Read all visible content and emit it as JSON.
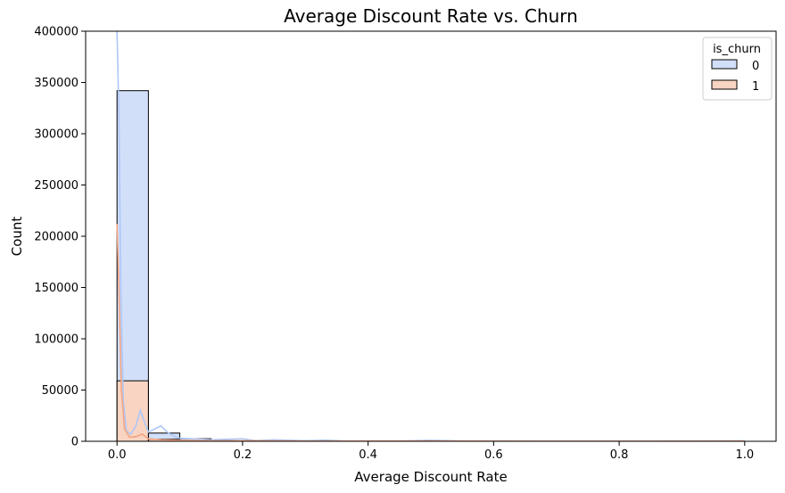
{
  "chart_data": {
    "type": "histogram",
    "title": "Average Discount Rate vs. Churn",
    "xlabel": "Average Discount Rate",
    "ylabel": "Count",
    "xlim": [
      -0.05,
      1.05
    ],
    "ylim": [
      0,
      400000
    ],
    "x_ticks": [
      "0.0",
      "0.2",
      "0.4",
      "0.6",
      "0.8",
      "1.0"
    ],
    "x_tick_values": [
      0.0,
      0.2,
      0.4,
      0.6,
      0.8,
      1.0
    ],
    "y_ticks": [
      "0",
      "50000",
      "100000",
      "150000",
      "200000",
      "250000",
      "300000",
      "350000",
      "400000"
    ],
    "y_tick_values": [
      0,
      50000,
      100000,
      150000,
      200000,
      250000,
      300000,
      350000,
      400000
    ],
    "bin_width": 0.05,
    "bins_start": [
      0.0,
      0.05,
      0.1,
      0.15,
      0.2,
      0.25,
      0.3,
      0.35,
      0.4,
      0.45,
      0.5,
      0.55,
      0.6,
      0.65,
      0.7,
      0.75,
      0.8,
      0.85,
      0.9,
      0.95
    ],
    "legend": {
      "title": "is_churn",
      "placement": "top-right"
    },
    "series": [
      {
        "name": "0",
        "color": "#aec7f8",
        "fill": "#d2dff9",
        "values": [
          342000,
          8000,
          2500,
          700,
          400,
          200,
          100,
          100,
          50,
          50,
          100,
          30,
          20,
          30,
          20,
          10,
          10,
          10,
          10,
          50
        ],
        "kde": [
          [
            0.0,
            400000
          ],
          [
            0.003,
            320000
          ],
          [
            0.006,
            150000
          ],
          [
            0.01,
            40000
          ],
          [
            0.015,
            10000
          ],
          [
            0.022,
            7000
          ],
          [
            0.03,
            15000
          ],
          [
            0.037,
            30000
          ],
          [
            0.043,
            20000
          ],
          [
            0.05,
            9000
          ],
          [
            0.06,
            12000
          ],
          [
            0.07,
            15000
          ],
          [
            0.08,
            9000
          ],
          [
            0.09,
            5000
          ],
          [
            0.1,
            3000
          ],
          [
            0.12,
            2500
          ],
          [
            0.15,
            1500
          ],
          [
            0.2,
            2500
          ],
          [
            0.22,
            700
          ],
          [
            0.25,
            1500
          ],
          [
            0.3,
            600
          ],
          [
            0.33,
            1200
          ],
          [
            0.36,
            400
          ],
          [
            0.45,
            300
          ],
          [
            0.5,
            1000
          ],
          [
            0.55,
            300
          ],
          [
            0.7,
            200
          ],
          [
            0.85,
            150
          ],
          [
            1.0,
            500
          ]
        ]
      },
      {
        "name": "1",
        "color": "#f4a582",
        "fill": "#f9d4c2",
        "values": [
          59000,
          2000,
          700,
          200,
          100,
          50,
          30,
          20,
          10,
          10,
          20,
          5,
          5,
          5,
          5,
          2,
          2,
          2,
          2,
          10
        ],
        "kde": [
          [
            0.0,
            212000
          ],
          [
            0.003,
            150000
          ],
          [
            0.007,
            50000
          ],
          [
            0.012,
            12000
          ],
          [
            0.02,
            4000
          ],
          [
            0.03,
            4500
          ],
          [
            0.04,
            7000
          ],
          [
            0.05,
            2500
          ],
          [
            0.07,
            1500
          ],
          [
            0.1,
            900
          ],
          [
            0.15,
            500
          ],
          [
            0.2,
            600
          ],
          [
            0.3,
            200
          ],
          [
            0.5,
            250
          ],
          [
            0.7,
            60
          ],
          [
            1.0,
            150
          ]
        ]
      }
    ]
  }
}
